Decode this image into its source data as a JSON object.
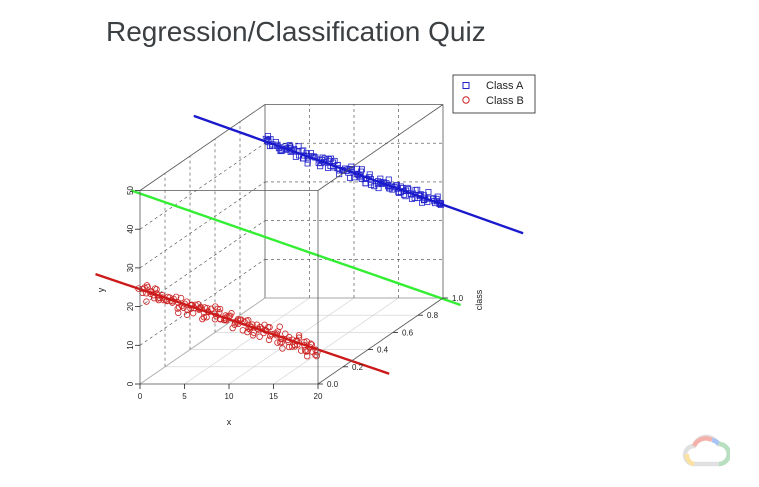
{
  "slide": {
    "title": "Regression/Classification Quiz"
  },
  "chart_data": {
    "type": "scatter",
    "projection": "3d",
    "title": "",
    "xlabel": "x",
    "ylabel": "y",
    "zlabel": "class",
    "xlim": [
      0,
      20
    ],
    "ylim": [
      0,
      50
    ],
    "zlim": [
      0,
      1
    ],
    "x_ticks": [
      "0",
      "5",
      "10",
      "15",
      "20"
    ],
    "y_ticks": [
      "0",
      "10",
      "20",
      "30",
      "40",
      "50"
    ],
    "z_ticks": [
      "0.0",
      "0.2",
      "0.4",
      "0.6",
      "0.8",
      "1.0"
    ],
    "legend": {
      "position": "top-right",
      "entries": [
        {
          "label": "Class A",
          "marker": "square",
          "color": "#2222cc"
        },
        {
          "label": "Class B",
          "marker": "circle",
          "color": "#cc2222"
        }
      ]
    },
    "series": [
      {
        "name": "Class A",
        "class_value": 1.0,
        "marker": "square",
        "color": "#2222cc",
        "n_points": 160,
        "x_range": [
          0,
          20
        ],
        "trend": {
          "slope": -0.82,
          "intercept": 40.5
        },
        "noise": 1.6
      },
      {
        "name": "Class B",
        "class_value": 0.0,
        "marker": "circle",
        "color": "#cc2222",
        "n_points": 160,
        "x_range": [
          0,
          20
        ],
        "trend": {
          "slope": -0.78,
          "intercept": 24.5
        },
        "noise": 2.2
      }
    ],
    "lines": [
      {
        "color": "#1a1acc",
        "class_value": 1.0,
        "slope": -0.82,
        "intercept": 40.5,
        "x_range": [
          -8,
          29
        ]
      },
      {
        "color": "#33ee33",
        "class_value": 0.5,
        "slope": -0.8,
        "intercept": 32.5,
        "x_range": [
          -8,
          29
        ]
      },
      {
        "color": "#cc1a1a",
        "class_value": 0.0,
        "slope": -0.78,
        "intercept": 24.5,
        "x_range": [
          -5,
          28
        ]
      }
    ],
    "grid": true
  },
  "colors": {
    "title": "#3c4043",
    "class_a": "#2222cc",
    "class_b": "#cc2222",
    "mid_line": "#33ee33"
  },
  "icons": {
    "logo": "google-cloud-logo-icon"
  }
}
